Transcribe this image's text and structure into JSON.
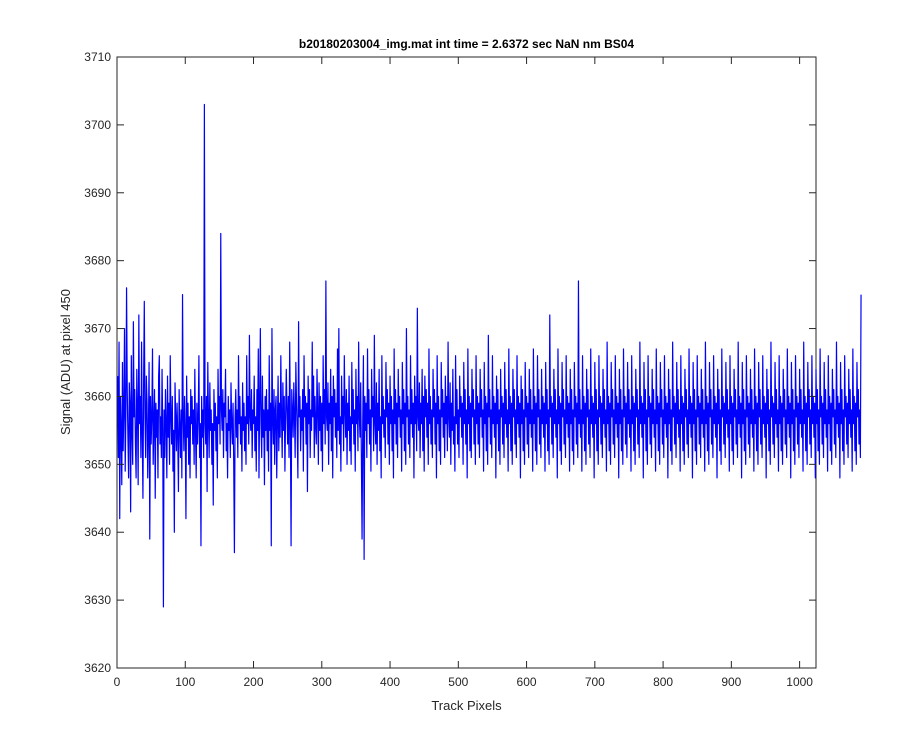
{
  "chart_data": {
    "type": "line",
    "title": "b20180203004_img.mat int time = 2.6372 sec  NaN nm BS04",
    "xlabel": "Track Pixels",
    "ylabel": "Signal (ADU) at pixel 450",
    "xlim": [
      0,
      1024
    ],
    "ylim": [
      3620,
      3710
    ],
    "x_ticks": [
      0,
      100,
      200,
      300,
      400,
      500,
      600,
      700,
      800,
      900,
      1000
    ],
    "y_ticks": [
      3620,
      3630,
      3640,
      3650,
      3660,
      3670,
      3680,
      3690,
      3700,
      3710
    ],
    "grid": false,
    "series": [
      {
        "color": "#0000ff",
        "x_start": 1,
        "x_step": 1,
        "values": [
          3663,
          3651,
          3668,
          3642,
          3660,
          3655,
          3647,
          3665,
          3652,
          3658,
          3670,
          3649,
          3657,
          3676,
          3661,
          3654,
          3648,
          3662,
          3659,
          3643,
          3666,
          3655,
          3650,
          3671,
          3657,
          3661,
          3653,
          3648,
          3664,
          3658,
          3647,
          3672,
          3656,
          3660,
          3651,
          3668,
          3654,
          3645,
          3662,
          3674,
          3657,
          3651,
          3663,
          3659,
          3648,
          3655,
          3665,
          3639,
          3660,
          3653,
          3657,
          3667,
          3650,
          3656,
          3661,
          3645,
          3659,
          3654,
          3658,
          3648,
          3663,
          3666,
          3653,
          3657,
          3651,
          3664,
          3655,
          3629,
          3658,
          3651,
          3661,
          3656,
          3648,
          3663,
          3654,
          3659,
          3650,
          3666,
          3657,
          3653,
          3660,
          3649,
          3655,
          3640,
          3662,
          3657,
          3652,
          3659,
          3654,
          3646,
          3661,
          3656,
          3651,
          3658,
          3648,
          3675,
          3657,
          3652,
          3660,
          3655,
          3642,
          3663,
          3654,
          3659,
          3650,
          3657,
          3648,
          3661,
          3656,
          3660,
          3653,
          3658,
          3650,
          3664,
          3655,
          3648,
          3659,
          3653,
          3657,
          3666,
          3651,
          3656,
          3638,
          3660,
          3654,
          3658,
          3651,
          3703,
          3656,
          3653,
          3660,
          3646,
          3665,
          3657,
          3651,
          3662,
          3655,
          3658,
          3650,
          3656,
          3644,
          3661,
          3655,
          3659,
          3652,
          3657,
          3648,
          3664,
          3656,
          3660,
          3653,
          3684,
          3658,
          3655,
          3661,
          3651,
          3659,
          3657,
          3664,
          3652,
          3656,
          3648,
          3660,
          3655,
          3658,
          3651,
          3662,
          3656,
          3653,
          3659,
          3650,
          3637,
          3657,
          3661,
          3654,
          3658,
          3651,
          3666,
          3656,
          3660,
          3653,
          3657,
          3649,
          3662,
          3655,
          3659,
          3652,
          3657,
          3650,
          3666,
          3656,
          3660,
          3653,
          3669,
          3657,
          3655,
          3661,
          3651,
          3658,
          3656,
          3663,
          3652,
          3657,
          3649,
          3661,
          3655,
          3667,
          3648,
          3659,
          3670,
          3656,
          3651,
          3663,
          3654,
          3658,
          3647,
          3660,
          3655,
          3661,
          3652,
          3658,
          3649,
          3666,
          3655,
          3659,
          3638,
          3670,
          3657,
          3653,
          3661,
          3650,
          3658,
          3660,
          3648,
          3656,
          3663,
          3652,
          3659,
          3654,
          3666,
          3657,
          3651,
          3662,
          3655,
          3660,
          3649,
          3657,
          3664,
          3658,
          3653,
          3660,
          3651,
          3668,
          3656,
          3638,
          3661,
          3658,
          3654,
          3662,
          3657,
          3651,
          3665,
          3659,
          3655,
          3648,
          3671,
          3657,
          3660,
          3652,
          3658,
          3655,
          3661,
          3649,
          3666,
          3657,
          3660,
          3653,
          3659,
          3646,
          3663,
          3656,
          3661,
          3651,
          3658,
          3655,
          3668,
          3657,
          3663,
          3651,
          3660,
          3656,
          3653,
          3664,
          3658,
          3650,
          3662,
          3655,
          3660,
          3652,
          3659,
          3649,
          3666,
          3656,
          3661,
          3653,
          3677,
          3657,
          3655,
          3662,
          3650,
          3659,
          3656,
          3664,
          3652,
          3660,
          3648,
          3663,
          3657,
          3661,
          3654,
          3659,
          3651,
          3667,
          3655,
          3670,
          3653,
          3657,
          3649,
          3663,
          3656,
          3660,
          3652,
          3666,
          3658,
          3654,
          3661,
          3650,
          3659,
          3655,
          3663,
          3652,
          3657,
          3650,
          3665,
          3656,
          3661,
          3653,
          3658,
          3649,
          3664,
          3656,
          3660,
          3652,
          3668,
          3657,
          3654,
          3662,
          3651,
          3639,
          3656,
          3666,
          3636,
          3660,
          3655,
          3659,
          3651,
          3667,
          3656,
          3661,
          3653,
          3658,
          3649,
          3664,
          3657,
          3660,
          3652,
          3669,
          3656,
          3653,
          3662,
          3650,
          3659,
          3655,
          3664,
          3652,
          3657,
          3648,
          3666,
          3656,
          3660,
          3654,
          3658,
          3651,
          3665,
          3657,
          3661,
          3653,
          3659,
          3650,
          3663,
          3656,
          3660,
          3652,
          3658,
          3648,
          3667,
          3656,
          3661,
          3653,
          3659,
          3651,
          3664,
          3657,
          3660,
          3654,
          3658,
          3649,
          3665,
          3656,
          3661,
          3652,
          3659,
          3650,
          3670,
          3657,
          3660,
          3653,
          3658,
          3651,
          3666,
          3656,
          3661,
          3654,
          3659,
          3648,
          3663,
          3656,
          3660,
          3652,
          3673,
          3657,
          3655,
          3662,
          3651,
          3659,
          3656,
          3664,
          3652,
          3660,
          3649,
          3663,
          3657,
          3661,
          3654,
          3659,
          3650,
          3667,
          3656,
          3660,
          3653,
          3658,
          3651,
          3664,
          3657,
          3661,
          3653,
          3659,
          3648,
          3666,
          3656,
          3660,
          3652,
          3658,
          3650,
          3665,
          3657,
          3661,
          3654,
          3659,
          3651,
          3663,
          3656,
          3660,
          3652,
          3668,
          3657,
          3654,
          3662,
          3650,
          3659,
          3655,
          3664,
          3653,
          3657,
          3649,
          3666,
          3656,
          3661,
          3653,
          3658,
          3651,
          3663,
          3657,
          3660,
          3654,
          3659,
          3650,
          3665,
          3656,
          3661,
          3653,
          3658,
          3648,
          3667,
          3656,
          3660,
          3652,
          3659,
          3651,
          3664,
          3657,
          3661,
          3653,
          3658,
          3650,
          3666,
          3656,
          3660,
          3653,
          3659,
          3651,
          3664,
          3657,
          3661,
          3654,
          3658,
          3649,
          3665,
          3656,
          3660,
          3652,
          3659,
          3650,
          3669,
          3657,
          3661,
          3653,
          3658,
          3651,
          3666,
          3656,
          3660,
          3654,
          3659,
          3648,
          3663,
          3656,
          3661,
          3652,
          3658,
          3650,
          3664,
          3657,
          3660,
          3653,
          3659,
          3651,
          3665,
          3656,
          3661,
          3654,
          3658,
          3649,
          3667,
          3656,
          3660,
          3652,
          3659,
          3650,
          3664,
          3657,
          3661,
          3653,
          3658,
          3651,
          3666,
          3656,
          3660,
          3654,
          3659,
          3648,
          3663,
          3656,
          3661,
          3652,
          3658,
          3650,
          3665,
          3657,
          3660,
          3653,
          3659,
          3651,
          3664,
          3656,
          3661,
          3654,
          3658,
          3649,
          3667,
          3656,
          3660,
          3652,
          3659,
          3650,
          3666,
          3657,
          3661,
          3653,
          3658,
          3651,
          3664,
          3656,
          3660,
          3654,
          3659,
          3649,
          3665,
          3656,
          3661,
          3652,
          3658,
          3650,
          3672,
          3657,
          3660,
          3653,
          3659,
          3651,
          3664,
          3656,
          3661,
          3654,
          3658,
          3648,
          3667,
          3656,
          3660,
          3652,
          3659,
          3650,
          3665,
          3657,
          3661,
          3653,
          3658,
          3651,
          3666,
          3656,
          3660,
          3654,
          3659,
          3649,
          3664,
          3656,
          3661,
          3652,
          3658,
          3650,
          3665,
          3657,
          3660,
          3653,
          3659,
          3651,
          3677,
          3656,
          3661,
          3654,
          3658,
          3649,
          3666,
          3656,
          3660,
          3652,
          3659,
          3650,
          3664,
          3657,
          3661,
          3653,
          3658,
          3651,
          3667,
          3656,
          3660,
          3654,
          3659,
          3648,
          3665,
          3656,
          3661,
          3652,
          3658,
          3650,
          3666,
          3657,
          3660,
          3653,
          3659,
          3651,
          3664,
          3656,
          3661,
          3654,
          3658,
          3649,
          3668,
          3656,
          3660,
          3652,
          3659,
          3650,
          3665,
          3657,
          3661,
          3653,
          3658,
          3651,
          3666,
          3656,
          3660,
          3654,
          3659,
          3648,
          3664,
          3656,
          3661,
          3652,
          3658,
          3650,
          3667,
          3657,
          3660,
          3653,
          3659,
          3651,
          3665,
          3656,
          3661,
          3654,
          3658,
          3649,
          3666,
          3656,
          3660,
          3652,
          3659,
          3650,
          3664,
          3657,
          3661,
          3653,
          3658,
          3651,
          3668,
          3656,
          3660,
          3654,
          3659,
          3648,
          3665,
          3656,
          3661,
          3652,
          3658,
          3650,
          3666,
          3657,
          3660,
          3653,
          3659,
          3651,
          3664,
          3656,
          3661,
          3654,
          3658,
          3649,
          3667,
          3656,
          3660,
          3652,
          3659,
          3650,
          3665,
          3657,
          3661,
          3653,
          3658,
          3651,
          3666,
          3656,
          3660,
          3654,
          3659,
          3648,
          3664,
          3656,
          3661,
          3652,
          3658,
          3650,
          3668,
          3657,
          3660,
          3653,
          3659,
          3651,
          3665,
          3656,
          3661,
          3654,
          3658,
          3649,
          3666,
          3656,
          3660,
          3652,
          3659,
          3650,
          3664,
          3657,
          3661,
          3653,
          3658,
          3651,
          3667,
          3656,
          3660,
          3654,
          3659,
          3648,
          3665,
          3656,
          3661,
          3652,
          3658,
          3650,
          3666,
          3657,
          3660,
          3653,
          3659,
          3651,
          3664,
          3656,
          3661,
          3654,
          3658,
          3649,
          3668,
          3656,
          3660,
          3652,
          3659,
          3650,
          3665,
          3657,
          3661,
          3653,
          3658,
          3651,
          3666,
          3656,
          3660,
          3654,
          3659,
          3648,
          3664,
          3656,
          3661,
          3652,
          3658,
          3650,
          3667,
          3657,
          3660,
          3653,
          3659,
          3651,
          3665,
          3656,
          3661,
          3654,
          3658,
          3649,
          3666,
          3656,
          3660,
          3652,
          3659,
          3650,
          3664,
          3657,
          3661,
          3653,
          3658,
          3651,
          3668,
          3656,
          3660,
          3654,
          3659,
          3648,
          3665,
          3656,
          3661,
          3652,
          3658,
          3650,
          3666,
          3657,
          3660,
          3653,
          3659,
          3651,
          3664,
          3656,
          3661,
          3654,
          3658,
          3649,
          3667,
          3656,
          3660,
          3652,
          3659,
          3650,
          3665,
          3657,
          3661,
          3653,
          3658,
          3651,
          3666,
          3656,
          3660,
          3654,
          3659,
          3648,
          3664,
          3656,
          3661,
          3652,
          3658,
          3650,
          3668,
          3657,
          3660,
          3653,
          3659,
          3651,
          3665,
          3656,
          3661,
          3654,
          3658,
          3649,
          3666,
          3656,
          3660,
          3652,
          3659,
          3650,
          3664,
          3657,
          3661,
          3653,
          3658,
          3651,
          3667,
          3656,
          3660,
          3654,
          3659,
          3648,
          3665,
          3656,
          3661,
          3652,
          3658,
          3650,
          3666,
          3657,
          3660,
          3653,
          3659,
          3651,
          3664,
          3656,
          3661,
          3654,
          3658,
          3649,
          3668,
          3656,
          3660,
          3652,
          3659,
          3650,
          3665,
          3657,
          3661,
          3653,
          3658,
          3651,
          3666,
          3656,
          3660,
          3654,
          3659,
          3648,
          3664,
          3656,
          3661,
          3652,
          3658,
          3650,
          3667,
          3657,
          3660,
          3653,
          3659,
          3651,
          3665,
          3656,
          3661,
          3654,
          3658,
          3649,
          3666,
          3656,
          3660,
          3652,
          3659,
          3650,
          3664,
          3657,
          3661,
          3653,
          3658,
          3651,
          3668,
          3656,
          3660,
          3654,
          3659,
          3648,
          3665,
          3656,
          3661,
          3652,
          3658,
          3650,
          3666,
          3657,
          3660,
          3653,
          3659,
          3651,
          3664,
          3656,
          3661,
          3654,
          3658,
          3649,
          3667,
          3656,
          3660,
          3652,
          3659,
          3650,
          3665,
          3657,
          3661,
          3653,
          3658,
          3651,
          3675
        ]
      }
    ]
  }
}
